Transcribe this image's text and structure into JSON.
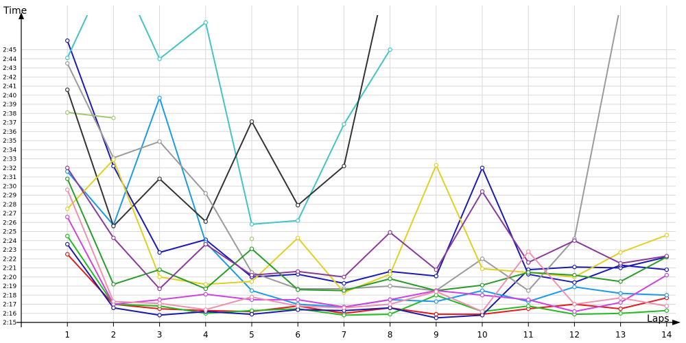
{
  "chart_data": {
    "type": "line",
    "ylabel": "Time",
    "xlabel": "Laps",
    "x": [
      1,
      2,
      3,
      4,
      5,
      6,
      7,
      8,
      9,
      10,
      11,
      12,
      13,
      14
    ],
    "xlim": [
      0,
      14
    ],
    "ylim": [
      "2:14",
      "2:46"
    ],
    "y_tick_labels": [
      "2:15",
      "2:16",
      "2:17",
      "2:18",
      "2:19",
      "2:20",
      "2:21",
      "2:22",
      "2:23",
      "2:24",
      "2:25",
      "2:26",
      "2:27",
      "2:28",
      "2:29",
      "2:30",
      "2:31",
      "2:32",
      "2:33",
      "2:34",
      "2:35",
      "2:36",
      "2:37",
      "2:38",
      "2:39",
      "2:40",
      "2:41",
      "2:42",
      "2:43",
      "2:44",
      "2:45"
    ],
    "grid": true,
    "marker": "open-circle",
    "series": [
      {
        "color": "#e31a1c",
        "values": [
          "2:22.5",
          "2:17.0",
          "2:16.5",
          "2:16.3",
          "2:16.2",
          "2:16.8",
          "2:16.0",
          "2:16.6",
          "2:15.9",
          "2:15.9",
          "2:16.5",
          "2:17.0",
          "2:16.5",
          "2:17.7"
        ]
      },
      {
        "color": "#22bb22",
        "values": [
          "2:24.5",
          "2:17.0",
          "2:16.8",
          "2:16.0",
          "2:16.3",
          "2:16.5",
          "2:15.8",
          "2:15.9",
          "2:18.0",
          "2:16.2",
          "2:16.8",
          "2:15.9",
          "2:16.0",
          "2:16.3"
        ]
      },
      {
        "color": "#1a1aa8",
        "values": [
          "2:23.6",
          "2:16.6",
          "2:15.8",
          "2:16.2",
          "2:15.9",
          "2:16.4",
          "2:16.3",
          "2:16.6",
          "2:15.5",
          "2:15.8",
          "2:20.8",
          "2:21.1",
          "2:21.0",
          "2:22.2"
        ]
      },
      {
        "color": "#1a1ab8",
        "values": [
          "2:46.0",
          "2:32.2",
          "2:22.7",
          "2:24.1",
          "2:20.0",
          "2:20.3",
          "2:19.3",
          "2:20.6",
          "2:20.1",
          "2:32.0",
          "2:20.3",
          "2:19.4",
          "2:21.3",
          "2:20.8"
        ]
      },
      {
        "color": "#1a9ae8",
        "values": [
          "2:31.6",
          "2:25.7",
          "2:39.7",
          "2:23.8",
          "2:18.5",
          "2:17.0",
          "2:16.7",
          "2:17.5",
          "2:17.3",
          "2:18.5",
          "2:17.3",
          "2:18.9",
          "2:18.2",
          "2:18.0"
        ]
      },
      {
        "color": "#40c4c4",
        "values": [
          "2:44.1",
          "2:55.0",
          "2:44.0",
          "2:48.0",
          "2:25.8",
          "2:26.2",
          "2:36.8",
          "2:45.0",
          "",
          "",
          "",
          "",
          "",
          ""
        ]
      },
      {
        "color": "#a0c870",
        "values": [
          "2:38.1",
          "2:37.5",
          "",
          "",
          "2:24.2",
          "",
          "",
          "",
          "",
          "",
          "",
          "",
          "",
          ""
        ]
      },
      {
        "color": "#333333",
        "values": [
          "2:40.6",
          "2:25.6",
          "2:30.8",
          "2:26.1",
          "2:37.1",
          "2:27.9",
          "2:32.2",
          "2:55.0",
          "",
          "",
          "",
          "",
          "",
          ""
        ]
      },
      {
        "color": "#9a9a9a",
        "values": [
          "2:43.5",
          "2:33.1",
          "2:34.9",
          "2:29.2",
          "2:20.5",
          "2:18.7",
          "2:18.7",
          "2:19.0",
          "2:18.5",
          "2:22.0",
          "2:18.5",
          "2:24.2",
          "2:50.0",
          ""
        ]
      },
      {
        "color": "#e0d020",
        "values": [
          "2:27.5",
          "2:32.9",
          "2:20.0",
          "2:19.2",
          "2:19.5",
          "2:24.3",
          "2:18.3",
          "2:20.3",
          "2:32.3",
          "2:20.9",
          "2:20.5",
          "2:20.0",
          "2:22.7",
          "2:24.6"
        ]
      },
      {
        "color": "#2a9a2a",
        "values": [
          "2:30.8",
          "2:19.2",
          "2:20.8",
          "2:18.7",
          "2:23.1",
          "2:18.6",
          "2:18.5",
          "2:19.8",
          "2:18.5",
          "2:19.1",
          "2:20.5",
          "2:20.2",
          "2:19.5",
          "2:22.2"
        ]
      },
      {
        "color": "#8a3a9a",
        "values": [
          "2:32.0",
          "2:24.3",
          "2:18.7",
          "2:23.6",
          "2:20.2",
          "2:20.6",
          "2:20.0",
          "2:24.9",
          "2:20.8",
          "2:29.4",
          "2:21.6",
          "2:24.0",
          "2:21.5",
          "2:22.3"
        ]
      },
      {
        "color": "#cc44dd",
        "values": [
          "2:26.6",
          "2:17.0",
          "2:17.5",
          "2:18.1",
          "2:17.5",
          "2:17.5",
          "2:16.7",
          "2:17.5",
          "2:18.5",
          "2:18.0",
          "2:17.5",
          "2:16.2",
          "2:17.2",
          "2:20.2"
        ]
      },
      {
        "color": "#f090b0",
        "values": [
          "2:29.6",
          "2:17.3",
          "2:17.1",
          "2:16.4",
          "2:17.8",
          "2:16.8",
          "2:16.6",
          "2:17.0",
          "2:18.4",
          "2:16.2",
          "2:22.8",
          "2:17.0",
          "2:17.7",
          "2:16.8"
        ]
      }
    ]
  }
}
